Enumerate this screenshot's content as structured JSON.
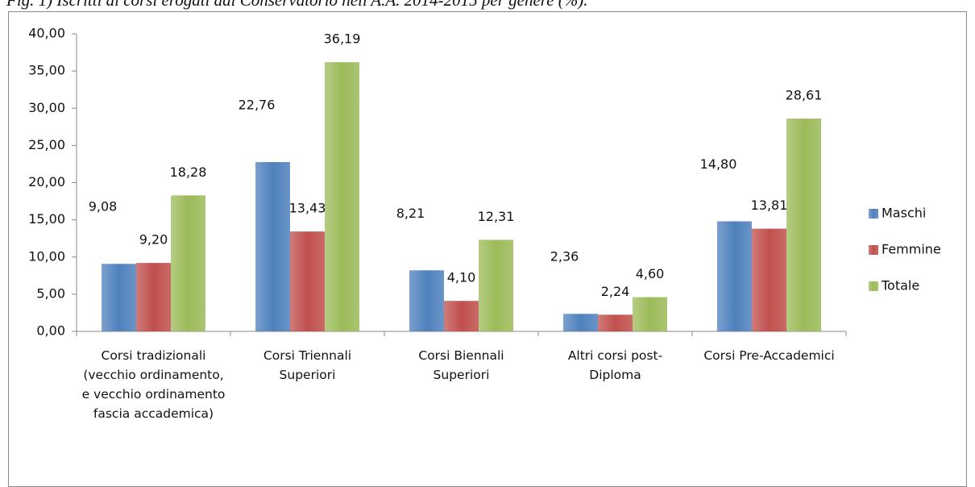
{
  "chart_data": {
    "type": "bar",
    "title": "Fig. 1) Iscritti ai corsi erogati dal Conservatorio nell'A.A. 2014-2015 per genere (%).",
    "categories": [
      "Corsi tradizionali (vecchio ordinamento, e vecchio ordinamento fascia accademica)",
      "Corsi Triennali Superiori",
      "Corsi Biennali Superiori",
      "Altri corsi post-Diploma",
      "Corsi Pre-Accademici"
    ],
    "series": [
      {
        "name": "Maschi",
        "color": "#4f81bd",
        "values": [
          9.08,
          22.76,
          8.21,
          2.36,
          14.8
        ],
        "value_labels": [
          "9,08",
          "22,76",
          "8,21",
          "2,36",
          "14,80"
        ]
      },
      {
        "name": "Femmine",
        "color": "#c0504d",
        "values": [
          9.2,
          13.43,
          4.1,
          2.24,
          13.81
        ],
        "value_labels": [
          "9,20",
          "13,43",
          "4,10",
          "2,24",
          "13,81"
        ]
      },
      {
        "name": "Totale",
        "color": "#9bbb59",
        "values": [
          18.28,
          36.19,
          12.31,
          4.6,
          28.61
        ],
        "value_labels": [
          "18,28",
          "36,19",
          "12,31",
          "4,60",
          "28,61"
        ]
      }
    ],
    "ylim": [
      0,
      40
    ],
    "yticks": [
      {
        "value": 0,
        "label": "0,00"
      },
      {
        "value": 5,
        "label": "5,00"
      },
      {
        "value": 10,
        "label": "10,00"
      },
      {
        "value": 15,
        "label": "15,00"
      },
      {
        "value": 20,
        "label": "20,00"
      },
      {
        "value": 25,
        "label": "25,00"
      },
      {
        "value": 30,
        "label": "30,00"
      },
      {
        "value": 35,
        "label": "35,00"
      },
      {
        "value": 40,
        "label": "40,00"
      }
    ],
    "legend": "right"
  }
}
